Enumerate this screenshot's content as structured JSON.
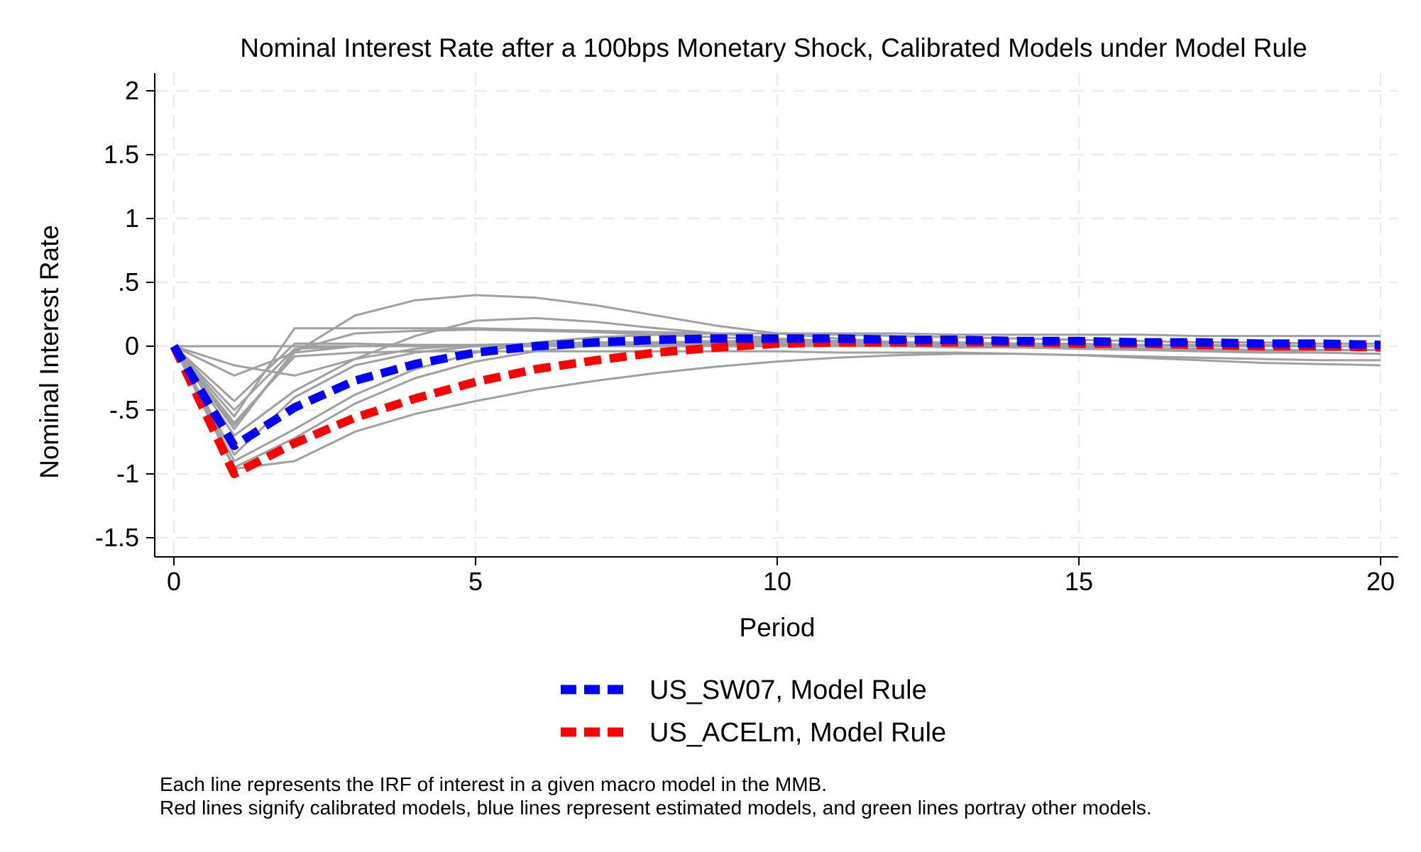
{
  "chart_data": {
    "type": "line",
    "title": "Nominal Interest Rate after a 100bps Monetary Shock, Calibrated Models under Model Rule",
    "xlabel": "Period",
    "ylabel": "Nominal Interest Rate",
    "xlim": [
      0,
      20
    ],
    "ylim": [
      -1.5,
      2
    ],
    "x_ticks": [
      0,
      5,
      10,
      15,
      20
    ],
    "x_tick_labels": [
      "0",
      "5",
      "10",
      "15",
      "20"
    ],
    "y_ticks": [
      -1.5,
      -1,
      -0.5,
      0,
      0.5,
      1,
      1.5,
      2
    ],
    "y_tick_labels": [
      "-1.5",
      "-1",
      "-.5",
      "0",
      ".5",
      "1",
      "1.5",
      "2"
    ],
    "grid": true,
    "legend_placement": "bottom",
    "x": [
      0,
      1,
      2,
      3,
      4,
      5,
      6,
      7,
      8,
      9,
      10,
      11,
      12,
      13,
      14,
      15,
      16,
      17,
      18,
      19,
      20
    ],
    "series": [
      {
        "name": "US_SW07, Model Rule",
        "color": "#0000ff",
        "style": "dashed",
        "highlight": true,
        "values": [
          0,
          -0.78,
          -0.48,
          -0.27,
          -0.14,
          -0.05,
          0.0,
          0.03,
          0.05,
          0.06,
          0.06,
          0.06,
          0.05,
          0.05,
          0.04,
          0.04,
          0.03,
          0.03,
          0.02,
          0.02,
          0.01
        ]
      },
      {
        "name": "US_ACELm, Model Rule",
        "color": "#ff0000",
        "style": "dashed",
        "highlight": true,
        "values": [
          0,
          -1.0,
          -0.76,
          -0.56,
          -0.41,
          -0.28,
          -0.18,
          -0.11,
          -0.05,
          -0.01,
          0.02,
          0.03,
          0.03,
          0.03,
          0.03,
          0.02,
          0.02,
          0.01,
          0.0,
          0.0,
          -0.01
        ]
      },
      {
        "color": "#a0a0a0",
        "style": "solid",
        "highlight": false,
        "values": [
          0,
          -0.55,
          0.14,
          0.14,
          0.14,
          0.14,
          0.13,
          0.12,
          0.11,
          0.1,
          0.1,
          0.1,
          0.1,
          0.09,
          0.09,
          0.09,
          0.09,
          0.08,
          0.08,
          0.08,
          0.08
        ]
      },
      {
        "color": "#a0a0a0",
        "style": "solid",
        "highlight": false,
        "values": [
          0,
          -0.62,
          -0.05,
          0.24,
          0.36,
          0.4,
          0.38,
          0.32,
          0.24,
          0.16,
          0.1,
          0.06,
          0.03,
          0.01,
          0.0,
          -0.01,
          -0.02,
          -0.02,
          -0.03,
          -0.03,
          -0.03
        ]
      },
      {
        "color": "#a0a0a0",
        "style": "solid",
        "highlight": false,
        "values": [
          0,
          -0.7,
          -0.35,
          -0.1,
          0.08,
          0.2,
          0.22,
          0.19,
          0.14,
          0.1,
          0.06,
          0.04,
          0.02,
          0.0,
          -0.01,
          -0.02,
          -0.02,
          -0.02,
          -0.03,
          -0.03,
          -0.03
        ]
      },
      {
        "color": "#a0a0a0",
        "style": "solid",
        "highlight": false,
        "values": [
          0,
          -0.9,
          -0.65,
          -0.38,
          -0.18,
          -0.05,
          0.03,
          0.07,
          0.09,
          0.1,
          0.1,
          0.09,
          0.08,
          0.07,
          0.06,
          0.05,
          0.04,
          0.03,
          0.03,
          0.02,
          0.02
        ]
      },
      {
        "color": "#a0a0a0",
        "style": "solid",
        "highlight": false,
        "values": [
          0,
          -0.96,
          -0.9,
          -0.67,
          -0.53,
          -0.43,
          -0.34,
          -0.27,
          -0.21,
          -0.16,
          -0.12,
          -0.09,
          -0.07,
          -0.06,
          -0.06,
          -0.07,
          -0.09,
          -0.11,
          -0.13,
          -0.14,
          -0.15
        ]
      },
      {
        "color": "#a0a0a0",
        "style": "solid",
        "highlight": false,
        "values": [
          0,
          -0.43,
          0.02,
          0.02,
          0.01,
          0.01,
          0.01,
          0.0,
          0.0,
          0.0,
          0.0,
          0.0,
          0.0,
          -0.01,
          -0.01,
          -0.02,
          -0.03,
          -0.04,
          -0.05,
          -0.05,
          -0.06
        ]
      },
      {
        "color": "#a0a0a0",
        "style": "solid",
        "highlight": false,
        "values": [
          0,
          -0.23,
          -0.05,
          0.0,
          0.01,
          0.01,
          0.01,
          0.01,
          0.01,
          0.01,
          0.01,
          0.01,
          0.0,
          0.0,
          0.0,
          0.0,
          0.0,
          0.0,
          0.0,
          0.0,
          0.0
        ]
      },
      {
        "color": "#a0a0a0",
        "style": "solid",
        "highlight": false,
        "values": [
          0,
          -0.15,
          -0.23,
          -0.1,
          -0.02,
          0.01,
          0.02,
          0.02,
          0.02,
          0.02,
          0.02,
          0.02,
          0.02,
          0.01,
          0.01,
          0.01,
          0.01,
          0.0,
          0.0,
          0.0,
          0.0
        ]
      },
      {
        "color": "#a0a0a0",
        "style": "solid",
        "highlight": false,
        "values": [
          0,
          -0.85,
          -0.4,
          -0.15,
          -0.05,
          0.0,
          0.02,
          0.03,
          0.03,
          0.03,
          0.03,
          0.02,
          0.02,
          0.02,
          0.01,
          0.01,
          0.01,
          0.01,
          0.0,
          0.0,
          0.0
        ]
      },
      {
        "color": "#a0a0a0",
        "style": "solid",
        "highlight": false,
        "values": [
          0,
          -0.95,
          -0.72,
          -0.45,
          -0.25,
          -0.12,
          -0.04,
          0.01,
          0.03,
          0.04,
          0.04,
          0.04,
          0.03,
          0.03,
          0.02,
          0.02,
          0.01,
          0.01,
          0.01,
          0.0,
          0.0
        ]
      },
      {
        "color": "#a0a0a0",
        "style": "solid",
        "highlight": false,
        "values": [
          0,
          -0.5,
          -0.02,
          0.0,
          0.0,
          0.0,
          0.0,
          0.0,
          0.0,
          0.0,
          0.0,
          0.0,
          0.0,
          0.0,
          0.0,
          0.0,
          0.0,
          0.0,
          0.0,
          0.0,
          0.0
        ]
      },
      {
        "color": "#a0a0a0",
        "style": "solid",
        "highlight": false,
        "values": [
          0,
          0.0,
          0.0,
          0.0,
          0.0,
          0.0,
          0.0,
          0.0,
          0.0,
          0.0,
          0.0,
          0.0,
          0.0,
          0.0,
          0.0,
          0.0,
          0.0,
          0.0,
          0.0,
          0.0,
          0.0
        ]
      },
      {
        "color": "#a0a0a0",
        "style": "solid",
        "highlight": false,
        "values": [
          0,
          -0.65,
          -0.03,
          0.1,
          0.12,
          0.13,
          0.12,
          0.11,
          0.09,
          0.07,
          0.05,
          0.03,
          0.02,
          0.01,
          0.0,
          -0.01,
          -0.02,
          -0.03,
          -0.04,
          -0.05,
          -0.06
        ]
      },
      {
        "color": "#a0a0a0",
        "style": "solid",
        "highlight": false,
        "values": [
          0,
          -0.6,
          -0.08,
          -0.05,
          -0.04,
          -0.04,
          -0.04,
          -0.04,
          -0.04,
          -0.04,
          -0.04,
          -0.05,
          -0.05,
          -0.05,
          -0.06,
          -0.07,
          -0.08,
          -0.09,
          -0.1,
          -0.11,
          -0.11
        ]
      }
    ]
  },
  "legend": {
    "items": [
      {
        "label": "US_SW07, Model Rule",
        "color": "#0000ff"
      },
      {
        "label": "US_ACELm, Model Rule",
        "color": "#ff0000"
      }
    ]
  },
  "notes": {
    "line1": "Each line represents the IRF of interest in a given macro model in the MMB.",
    "line2": "Red lines signify calibrated models, blue lines represent estimated models, and green lines portray other models."
  }
}
